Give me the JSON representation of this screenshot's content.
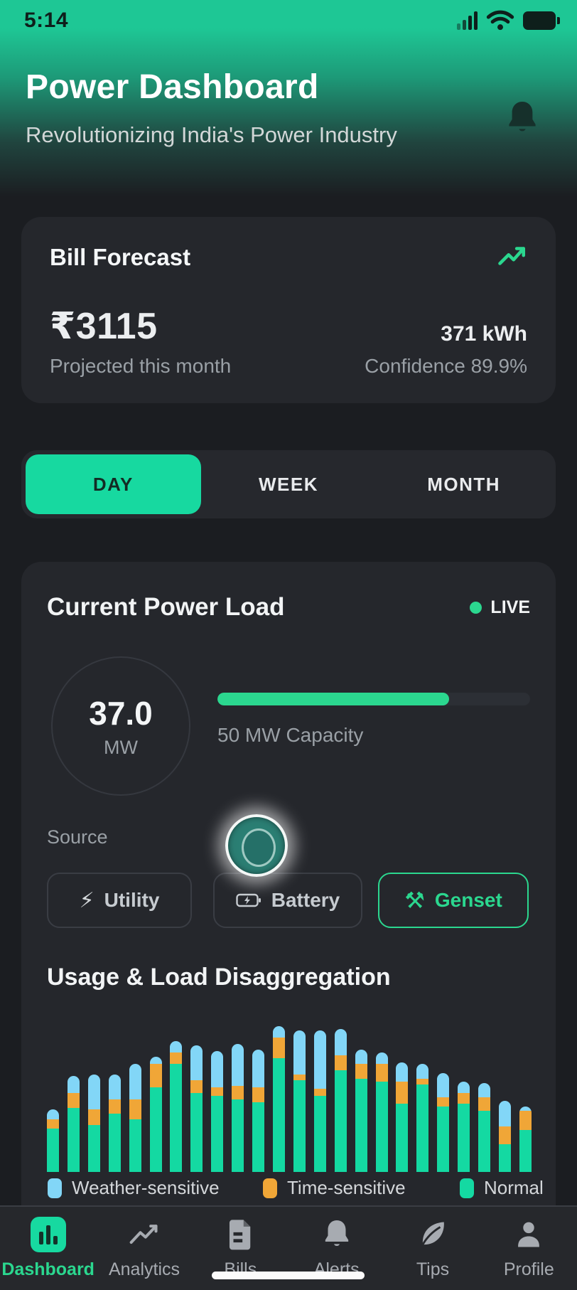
{
  "status_bar": {
    "time": "5:14"
  },
  "header": {
    "title": "Power Dashboard",
    "subtitle": "Revolutionizing India's Power Industry"
  },
  "bill_forecast": {
    "title": "Bill Forecast",
    "amount": "₹3115",
    "amount_label": "Projected this month",
    "energy": "371 kWh",
    "confidence": "Confidence 89.9%"
  },
  "period_tabs": {
    "day": "DAY",
    "week": "WEEK",
    "month": "MONTH",
    "selected": "DAY"
  },
  "power_load": {
    "title": "Current Power Load",
    "live_label": "LIVE",
    "value": "37.0",
    "unit": "MW",
    "capacity_label": "50 MW Capacity",
    "capacity_percent": 74,
    "source_label": "Source",
    "sources": {
      "utility": "Utility",
      "battery": "Battery",
      "genset": "Genset",
      "selected": "Genset"
    }
  },
  "usage": {
    "title": "Usage & Load Disaggregation",
    "legend": [
      {
        "label": "Weather-sensitive",
        "color": "#82d6f7"
      },
      {
        "label": "Time-sensitive",
        "color": "#f0a637"
      },
      {
        "label": "Normal",
        "color": "#14d9a2"
      }
    ]
  },
  "chart_data": {
    "type": "bar",
    "stacked": true,
    "x": [
      0,
      1,
      2,
      3,
      4,
      5,
      6,
      7,
      8,
      9,
      10,
      11,
      12,
      13,
      14,
      15,
      16,
      17,
      18,
      19,
      20,
      21,
      22,
      23
    ],
    "series": [
      {
        "name": "Normal",
        "color": "#14d9a2",
        "values": [
          30,
          44,
          32,
          40,
          36,
          58,
          74,
          54,
          52,
          50,
          48,
          78,
          63,
          52,
          70,
          64,
          62,
          47,
          60,
          45,
          47,
          42,
          19,
          29
        ]
      },
      {
        "name": "Time-sensitive",
        "color": "#f0a637",
        "values": [
          6,
          10,
          11,
          10,
          14,
          16,
          8,
          9,
          6,
          9,
          10,
          14,
          4,
          5,
          10,
          10,
          12,
          15,
          4,
          6,
          7,
          9,
          12,
          13
        ]
      },
      {
        "name": "Weather-sensitive",
        "color": "#82d6f7",
        "values": [
          7,
          12,
          24,
          17,
          24,
          5,
          8,
          24,
          25,
          29,
          26,
          8,
          30,
          40,
          18,
          10,
          8,
          13,
          10,
          17,
          8,
          10,
          18,
          3
        ]
      }
    ],
    "title": "Usage & Load Disaggregation",
    "xlabel": "",
    "ylabel": "",
    "ylim": [
      0,
      100
    ],
    "grid": false,
    "legend_position": "bottom",
    "axis_labels_visible": false
  },
  "nav": {
    "items": [
      {
        "label": "Dashboard",
        "icon": "bar-chart-icon",
        "active": true
      },
      {
        "label": "Analytics",
        "icon": "trending-icon",
        "active": false
      },
      {
        "label": "Bills",
        "icon": "file-icon",
        "active": false
      },
      {
        "label": "Alerts",
        "icon": "bell-icon",
        "active": false
      },
      {
        "label": "Tips",
        "icon": "leaf-icon",
        "active": false
      },
      {
        "label": "Profile",
        "icon": "person-icon",
        "active": false
      }
    ]
  },
  "colors": {
    "accent": "#2bd78f",
    "accent2": "#17d9a0",
    "header_green": "#1ec795",
    "bar_green": "#14d9a2",
    "bar_orange": "#f0a637",
    "bar_blue": "#82d6f7",
    "page_bg": "#1b1d21",
    "card_bg": "#25272c"
  },
  "icons": {
    "utility": "⚡",
    "genset": "⚒"
  }
}
